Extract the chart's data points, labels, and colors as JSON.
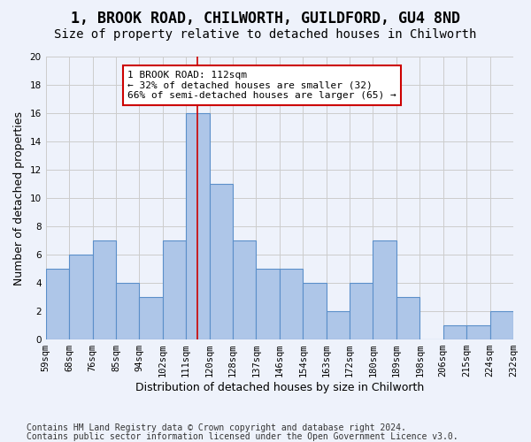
{
  "title1": "1, BROOK ROAD, CHILWORTH, GUILDFORD, GU4 8ND",
  "title2": "Size of property relative to detached houses in Chilworth",
  "xlabel": "Distribution of detached houses by size in Chilworth",
  "ylabel": "Number of detached properties",
  "bar_labels": [
    "59sqm",
    "68sqm",
    "76sqm",
    "85sqm",
    "94sqm",
    "102sqm",
    "111sqm",
    "120sqm",
    "128sqm",
    "137sqm",
    "146sqm",
    "154sqm",
    "163sqm",
    "172sqm",
    "180sqm",
    "189sqm",
    "198sqm",
    "206sqm",
    "215sqm",
    "224sqm",
    "232sqm"
  ],
  "bar_heights": [
    5,
    6,
    7,
    4,
    3,
    7,
    16,
    11,
    7,
    5,
    5,
    4,
    2,
    4,
    7,
    3,
    0,
    1,
    1,
    2
  ],
  "bar_color": "#aec6e8",
  "bar_edge_color": "#5b8fc9",
  "highlight_bar_index": 6,
  "highlight_line_color": "#cc0000",
  "ylim": [
    0,
    20
  ],
  "yticks": [
    0,
    2,
    4,
    6,
    8,
    10,
    12,
    14,
    16,
    18,
    20
  ],
  "grid_color": "#cccccc",
  "background_color": "#eef2fb",
  "annotation_text": "1 BROOK ROAD: 112sqm\n← 32% of detached houses are smaller (32)\n66% of semi-detached houses are larger (65) →",
  "annotation_box_color": "#ffffff",
  "annotation_box_edge": "#cc0000",
  "footer1": "Contains HM Land Registry data © Crown copyright and database right 2024.",
  "footer2": "Contains public sector information licensed under the Open Government Licence v3.0.",
  "title1_fontsize": 12,
  "title2_fontsize": 10,
  "axis_label_fontsize": 9,
  "tick_fontsize": 7.5,
  "footer_fontsize": 7,
  "annotation_fontsize": 8
}
